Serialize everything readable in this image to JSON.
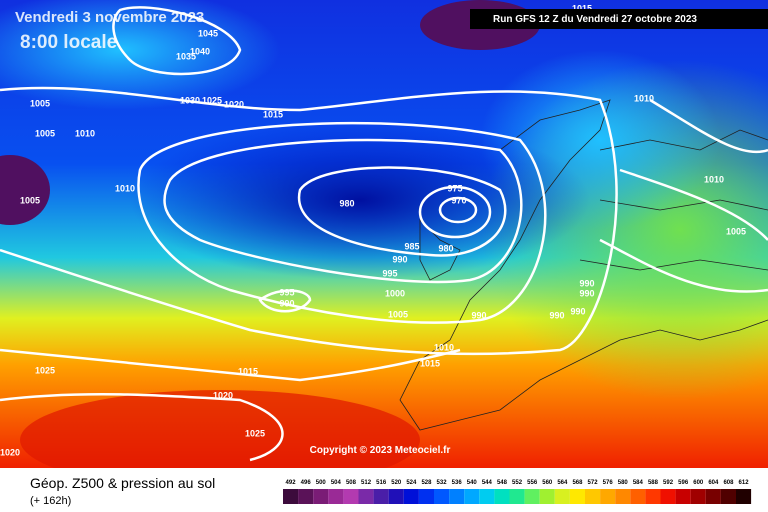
{
  "header": {
    "date": "Vendredi 3 novembre 2023",
    "time": "8:00 locale",
    "run": "Run GFS 12 Z du Vendredi 27 octobre 2023",
    "copyright": "Copyright © 2023 Meteociel.fr"
  },
  "footer": {
    "title": "Géop. Z500 & pression au sol",
    "lead": "(+ 162h)"
  },
  "isobar_labels": [
    1045,
    1040,
    1035,
    1030,
    1025,
    1020,
    1015,
    1005,
    1005,
    1010,
    1010,
    1005,
    980,
    975,
    970,
    980,
    985,
    990,
    995,
    995,
    990,
    1000,
    1005,
    990,
    990,
    990,
    990,
    990,
    1010,
    1015,
    1015,
    1025,
    1020,
    1025,
    1020,
    1010,
    1010,
    1005,
    1015
  ],
  "scale": {
    "values": [
      492,
      496,
      500,
      504,
      508,
      512,
      516,
      520,
      524,
      528,
      532,
      536,
      540,
      544,
      548,
      552,
      556,
      560,
      564,
      568,
      572,
      576,
      580,
      584,
      588,
      592,
      596,
      600,
      604,
      608,
      612
    ],
    "colors": [
      "#3c0b3c",
      "#5a1258",
      "#7a1c76",
      "#9a2a96",
      "#b33ab0",
      "#7a2aa8",
      "#4a1ea8",
      "#2010b8",
      "#0010d8",
      "#0030f0",
      "#0058ff",
      "#0080ff",
      "#00a8ff",
      "#00ccf0",
      "#00e0c0",
      "#20e890",
      "#60f060",
      "#a0f030",
      "#d8f020",
      "#ffe800",
      "#ffc800",
      "#ffa800",
      "#ff8800",
      "#ff6000",
      "#ff3800",
      "#f01000",
      "#c80000",
      "#a00000",
      "#780000",
      "#500000",
      "#200000"
    ]
  }
}
